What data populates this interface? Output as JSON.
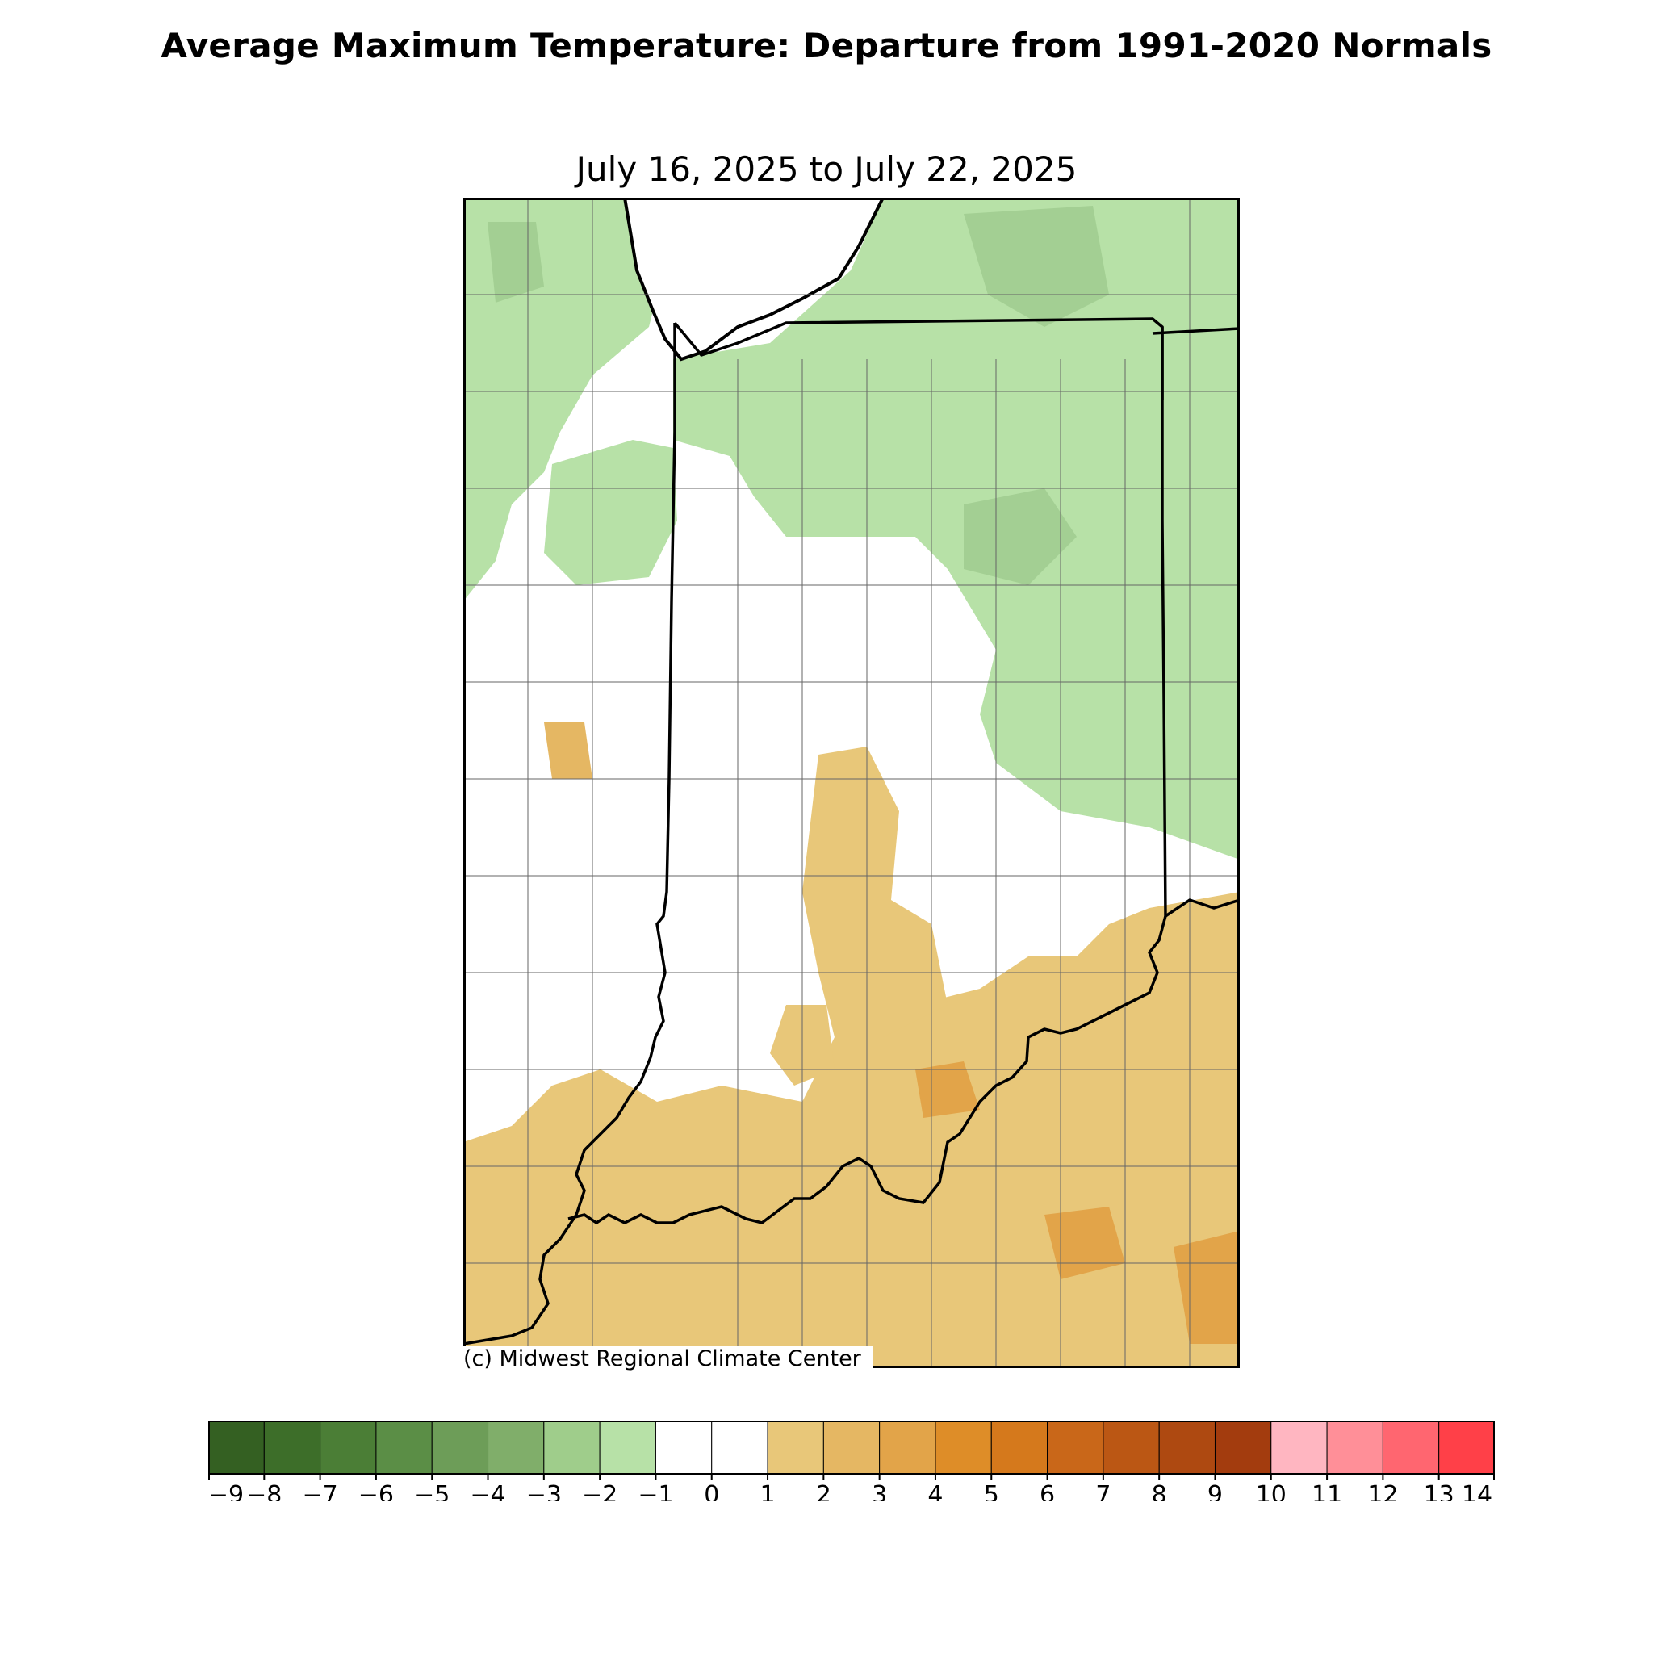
{
  "title": "Average Maximum Temperature: Departure from 1991-2020 Normals",
  "subtitle": "July 16, 2025 to July 22, 2025",
  "credit": "(c) Midwest Regional Climate Center",
  "map": {
    "region": "Indiana",
    "colors": {
      "cool": "#b7e1a7",
      "cool_dark": "#a3cf93",
      "warm": "#e8c779",
      "warm_dark": "#e2ae5b",
      "lake": "#ffffff",
      "border": "#000000",
      "county": "#666666"
    }
  },
  "colorbar": {
    "ticks": [
      "−9",
      "−8",
      "−7",
      "−6",
      "−5",
      "−4",
      "−3",
      "−2",
      "−1",
      "0",
      "1",
      "2",
      "3",
      "4",
      "5",
      "6",
      "7",
      "8",
      "9",
      "10",
      "11",
      "12",
      "13",
      "14"
    ],
    "colors": [
      "#346022",
      "#3d6e29",
      "#4b7e36",
      "#5b8e46",
      "#6d9d58",
      "#80ae6a",
      "#9fcd8b",
      "#b7e1a7",
      "#ffffff",
      "#ffffff",
      "#e8c779",
      "#e5b763",
      "#e2a449",
      "#de8d28",
      "#d5791c",
      "#c96719",
      "#bb5714",
      "#ae4911",
      "#a33c0e",
      "#ffb6c1",
      "#ff8f98",
      "#ff6670",
      "#ff4048"
    ]
  }
}
